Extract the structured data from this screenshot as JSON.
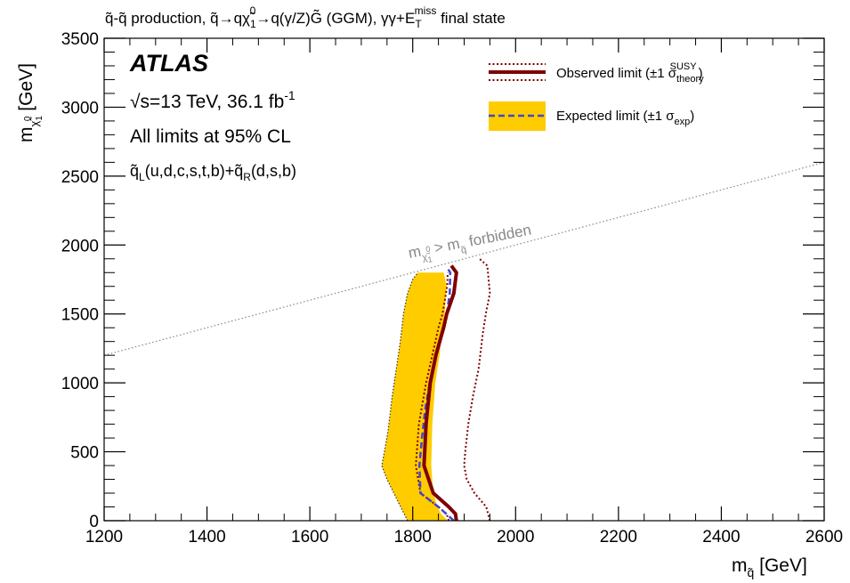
{
  "colors": {
    "observed": "#7f0000",
    "expected_band": "#ffcc00",
    "expected_line": "#3f48cc",
    "diagonal": "#888888"
  },
  "header": {
    "title_prefix": "q̃-q̃ production, q̃→qχ̃",
    "title_sub": "1",
    "title_sup": "0",
    "title_mid": "→q(γ/Z)G̃ (GGM), γγ+E",
    "title_Tsub": "T",
    "title_miss": "miss",
    "title_suffix": " final state"
  },
  "annotations": {
    "atlas": "ATLAS",
    "energy_root": "√",
    "energy_text": "s=13 TeV, 36.1 fb",
    "energy_sup": "-1",
    "cl_text": "All limits at 95% CL",
    "squarks_qL": "q̃",
    "squarks_L": "L",
    "squarks_mid": "(u,d,c,s,t,b)+q̃",
    "squarks_R": "R",
    "squarks_end": "(d,s,b)",
    "forbidden_m": "m",
    "forbidden_chi": "χ̃",
    "forbidden_chi_sub": "1",
    "forbidden_chi_sup": "0",
    "forbidden_gt": " > m",
    "forbidden_q": "q̃",
    "forbidden_text": " forbidden"
  },
  "legend": {
    "observed_label": "Observed limit (±1 σ",
    "observed_sub": "theory",
    "observed_sup": "SUSY",
    "expected_label": "Expected limit (±1 σ",
    "expected_sub": "exp"
  },
  "chart_data": {
    "type": "line",
    "xlabel": "m_q̃ [GeV]",
    "ylabel": "m_χ̃₁⁰ [GeV]",
    "xlim": [
      1200,
      2600
    ],
    "ylim": [
      0,
      3500
    ],
    "x_ticks": [
      "1200",
      "1400",
      "1600",
      "1800",
      "2000",
      "2200",
      "2400",
      "2600"
    ],
    "y_ticks": [
      "0",
      "500",
      "1000",
      "1500",
      "2000",
      "2500",
      "3000",
      "3500"
    ],
    "diagonal": {
      "x": [
        1200,
        2600
      ],
      "y": [
        1200,
        2600
      ]
    },
    "series": [
      {
        "name": "Observed limit",
        "x": [
          1885,
          1883,
          1870,
          1840,
          1822,
          1826,
          1834,
          1845,
          1860,
          1866,
          1880,
          1885,
          1875
        ],
        "y": [
          0,
          50,
          100,
          200,
          400,
          700,
          1000,
          1200,
          1400,
          1500,
          1650,
          1800,
          1850
        ]
      },
      {
        "name": "Observed +1σ theory",
        "x": [
          1950,
          1943,
          1920,
          1905,
          1900,
          1902,
          1908,
          1917,
          1928,
          1936,
          1942,
          1950,
          1945,
          1930
        ],
        "y": [
          0,
          100,
          200,
          300,
          400,
          500,
          700,
          900,
          1100,
          1350,
          1500,
          1650,
          1850,
          1900
        ]
      },
      {
        "name": "Observed -1σ theory",
        "x": [
          1870,
          1866,
          1850,
          1815,
          1806,
          1812,
          1826,
          1838,
          1850,
          1858,
          1867,
          1868
        ],
        "y": [
          0,
          50,
          100,
          200,
          400,
          700,
          1000,
          1200,
          1400,
          1500,
          1700,
          1800
        ]
      },
      {
        "name": "Expected limit",
        "x": [
          1880,
          1850,
          1815,
          1813,
          1818,
          1824,
          1833,
          1845,
          1860,
          1866,
          1872,
          1873,
          1868
        ],
        "y": [
          0,
          100,
          200,
          400,
          600,
          800,
          1000,
          1200,
          1400,
          1500,
          1650,
          1800,
          1830
        ]
      },
      {
        "name": "Expected -1σ",
        "x": [
          1790,
          1770,
          1750,
          1740,
          1745,
          1752,
          1760,
          1768,
          1776,
          1782,
          1790,
          1800,
          1810
        ],
        "y": [
          0,
          150,
          300,
          400,
          500,
          650,
          900,
          1100,
          1300,
          1500,
          1650,
          1750,
          1800
        ]
      },
      {
        "name": "Expected +1σ",
        "x": [
          1868,
          1855,
          1848,
          1840,
          1836,
          1838,
          1844,
          1852,
          1858,
          1862,
          1866,
          1860
        ],
        "y": [
          0,
          50,
          100,
          200,
          400,
          700,
          1000,
          1200,
          1400,
          1500,
          1700,
          1800
        ]
      }
    ]
  }
}
